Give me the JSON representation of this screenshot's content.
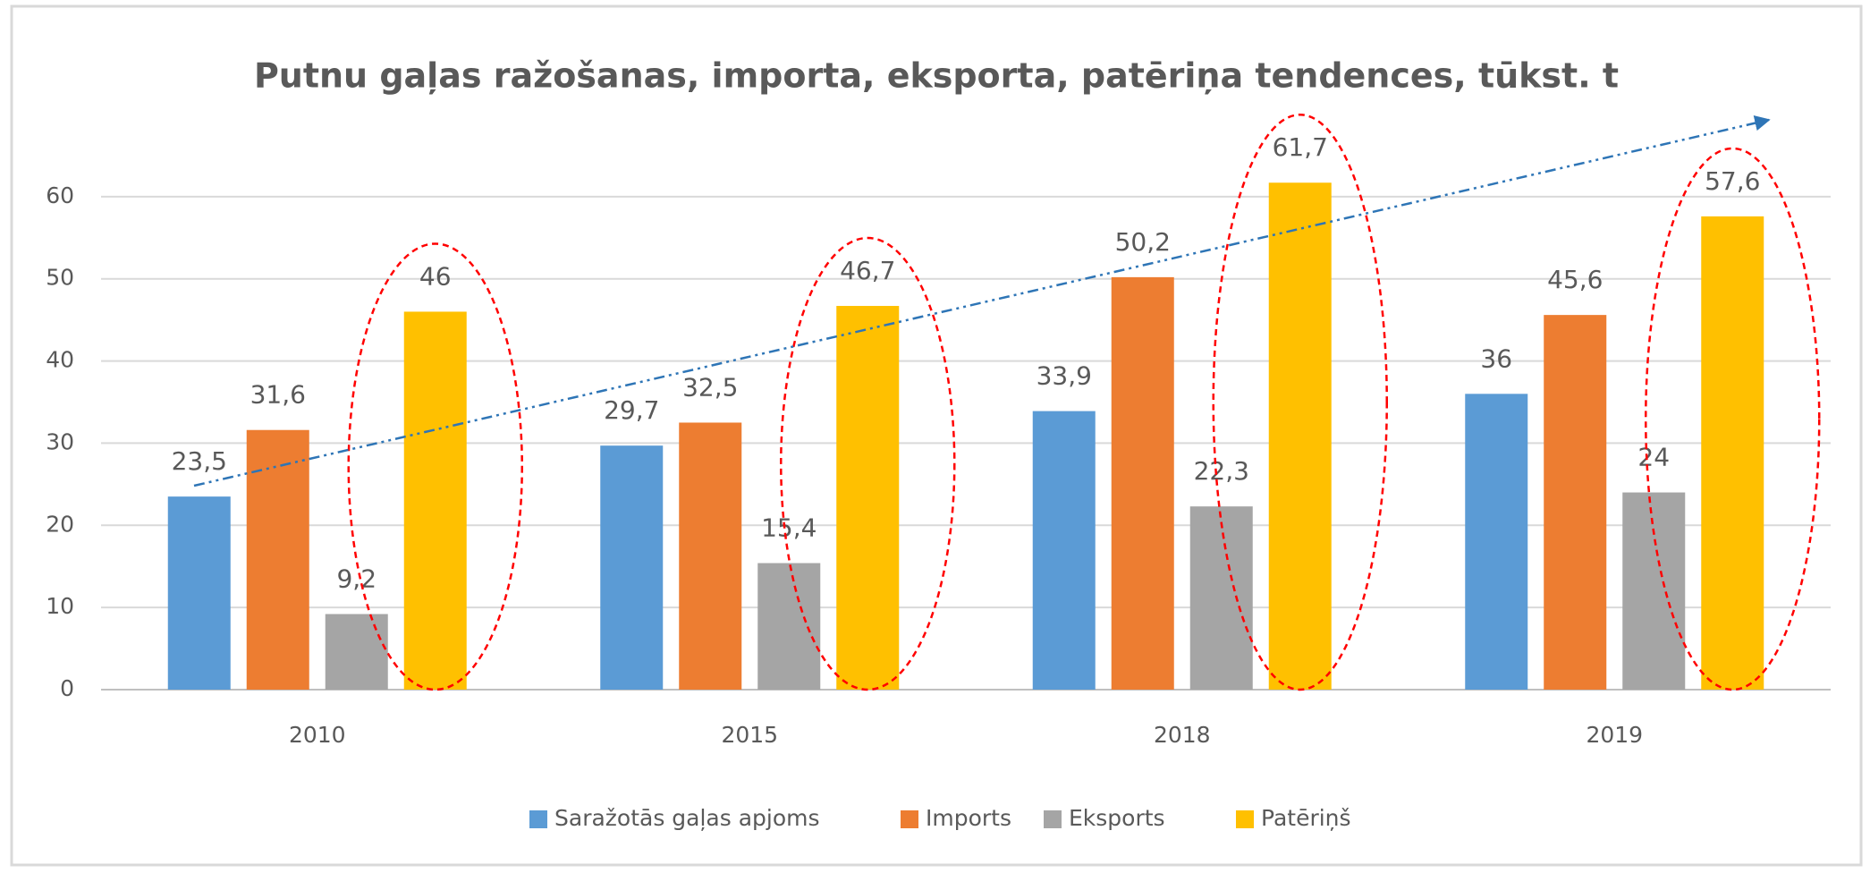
{
  "chart_data": {
    "type": "bar",
    "title": "Putnu gaļas ražošanas, importa, eksporta, patēriņa tendences, tūkst. t",
    "categories": [
      "2010",
      "2015",
      "2018",
      "2019"
    ],
    "series": [
      {
        "name": "Saražotās gaļas apjoms",
        "color": "#5b9bd5",
        "values": [
          23.5,
          29.7,
          33.9,
          36
        ],
        "value_labels": [
          "23,5",
          "29,7",
          "33,9",
          "36"
        ]
      },
      {
        "name": "Imports",
        "color": "#ed7d31",
        "values": [
          31.6,
          32.5,
          50.2,
          45.6
        ],
        "value_labels": [
          "31,6",
          "32,5",
          "50,2",
          "45,6"
        ]
      },
      {
        "name": "Eksports",
        "color": "#a5a5a5",
        "values": [
          9.2,
          15.4,
          22.3,
          24
        ],
        "value_labels": [
          "9,2",
          "15,4",
          "22,3",
          "24"
        ]
      },
      {
        "name": "Patēriņš",
        "color": "#ffc000",
        "values": [
          46,
          46.7,
          61.7,
          57.6
        ],
        "value_labels": [
          "46",
          "46,7",
          "61,7",
          "57,6"
        ]
      }
    ],
    "ylim": [
      0,
      70
    ],
    "yticks": [
      0,
      10,
      20,
      30,
      40,
      50,
      60
    ],
    "grid": true,
    "legend": "bottom"
  }
}
